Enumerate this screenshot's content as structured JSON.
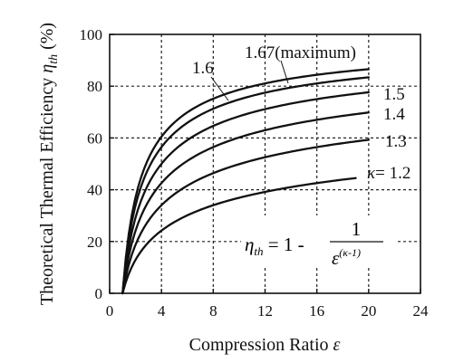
{
  "chart_data": {
    "type": "line",
    "xlabel_main": "Compression Ratio ",
    "xlabel_symbol": "ε",
    "ylabel_main": "Theoretical Thermal Efficiency ",
    "ylabel_symbol": "η",
    "ylabel_sub": "th",
    "ylabel_unit": " (%)",
    "xlim": [
      0,
      24
    ],
    "ylim": [
      0,
      100
    ],
    "x_ticks": [
      "0",
      "4",
      "8",
      "12",
      "16",
      "20",
      "24"
    ],
    "y_ticks": [
      "0",
      "20",
      "40",
      "60",
      "80",
      "100"
    ],
    "grid": true,
    "formula": {
      "lhs_symbol": "η",
      "lhs_sub": "th",
      "equals_part": " = 1 - ",
      "numerator": "1",
      "denominator_base": "ε",
      "denominator_exp": "(κ-1)"
    },
    "series": [
      {
        "kappa": 1.67,
        "label": "1.67(maximum)",
        "x_end": 20,
        "y_end": 86.5
      },
      {
        "kappa": 1.6,
        "label": "1.6",
        "x_end": 20,
        "y_end": 83.4
      },
      {
        "kappa": 1.5,
        "label": "1.5",
        "x_end": 20,
        "y_end": 77.6
      },
      {
        "kappa": 1.4,
        "label": "1.4",
        "x_end": 20,
        "y_end": 69.8
      },
      {
        "kappa": 1.3,
        "label": "1.3",
        "x_end": 20,
        "y_end": 59.3
      },
      {
        "kappa": 1.2,
        "label_prefix": "κ",
        "label": "= 1.2",
        "x_end": 19,
        "y_end": 44.5
      }
    ]
  }
}
